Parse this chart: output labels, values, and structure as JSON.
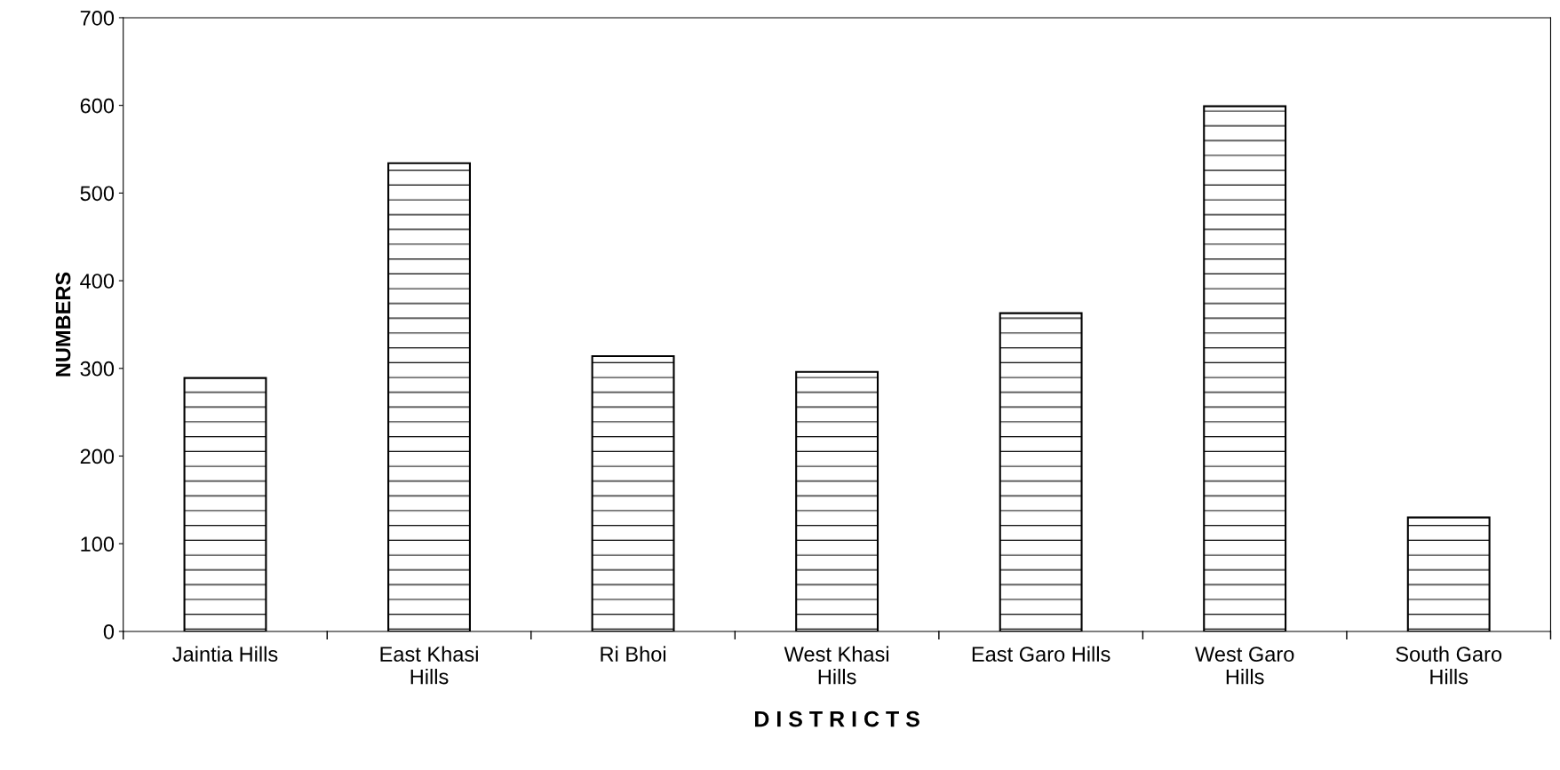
{
  "chart_data": {
    "type": "bar",
    "xlabel": "D I S T R I C T S",
    "ylabel": "NUMBERS",
    "categories": [
      "Jaintia Hills",
      "East Khasi\nHills",
      "Ri Bhoi",
      "West Khasi\nHills",
      "East Garo Hills",
      "West Garo\nHills",
      "South Garo\nHills"
    ],
    "values": [
      289,
      534,
      314,
      296,
      363,
      599,
      130
    ],
    "color": "#000000",
    "ylim": [
      0,
      700
    ],
    "yticks": [
      0,
      100,
      200,
      300,
      400,
      500,
      600,
      700
    ],
    "grid": false
  }
}
